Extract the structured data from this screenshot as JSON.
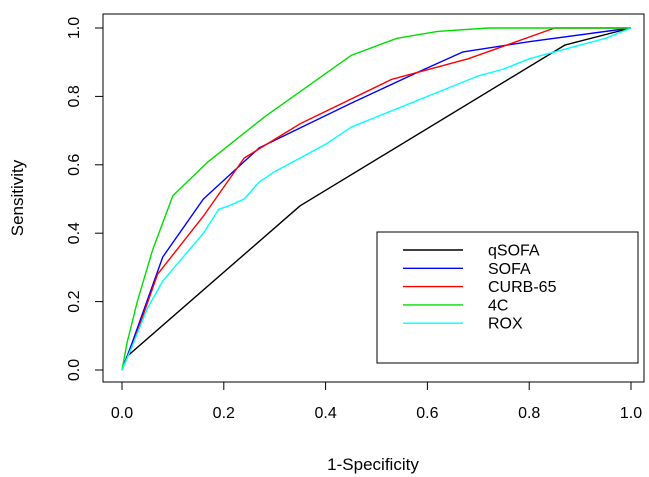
{
  "chart_data": {
    "type": "line",
    "title": "",
    "xlabel": "1-Specificity",
    "ylabel": "Sensitivity",
    "xlim": [
      0,
      1
    ],
    "ylim": [
      0,
      1
    ],
    "xticks": [
      "0.0",
      "0.2",
      "0.4",
      "0.6",
      "0.8",
      "1.0"
    ],
    "yticks": [
      "0.0",
      "0.2",
      "0.4",
      "0.6",
      "0.8",
      "1.0"
    ],
    "grid": false,
    "legend_position": "bottom-right",
    "series": [
      {
        "name": "qSOFA",
        "color": "#000000",
        "x": [
          0,
          0.01,
          0.35,
          0.87,
          1.0
        ],
        "y": [
          0,
          0.04,
          0.48,
          0.95,
          1.0
        ]
      },
      {
        "name": "SOFA",
        "color": "#0000ff",
        "x": [
          0,
          0.02,
          0.08,
          0.16,
          0.27,
          0.45,
          0.58,
          0.67,
          0.8,
          1.0
        ],
        "y": [
          0,
          0.08,
          0.33,
          0.5,
          0.65,
          0.78,
          0.87,
          0.93,
          0.96,
          1.0
        ]
      },
      {
        "name": "CURB-65",
        "color": "#ff0000",
        "x": [
          0,
          0.02,
          0.07,
          0.16,
          0.24,
          0.35,
          0.53,
          0.68,
          0.85,
          1.0
        ],
        "y": [
          0,
          0.07,
          0.28,
          0.45,
          0.62,
          0.72,
          0.85,
          0.91,
          1.0,
          1.0
        ]
      },
      {
        "name": "4C",
        "color": "#00dd00",
        "x": [
          0,
          0.01,
          0.03,
          0.06,
          0.1,
          0.17,
          0.28,
          0.45,
          0.54,
          0.62,
          0.72,
          0.85,
          1.0
        ],
        "y": [
          0,
          0.08,
          0.2,
          0.35,
          0.51,
          0.61,
          0.74,
          0.92,
          0.97,
          0.99,
          1.0,
          1.0,
          1.0
        ]
      },
      {
        "name": "ROX",
        "color": "#00ffff",
        "x": [
          0,
          0.02,
          0.05,
          0.08,
          0.12,
          0.16,
          0.19,
          0.21,
          0.24,
          0.27,
          0.3,
          0.35,
          0.4,
          0.45,
          0.5,
          0.55,
          0.6,
          0.65,
          0.7,
          0.75,
          0.8,
          0.85,
          0.9,
          0.95,
          1.0
        ],
        "y": [
          0,
          0.07,
          0.18,
          0.26,
          0.33,
          0.4,
          0.47,
          0.48,
          0.5,
          0.55,
          0.58,
          0.62,
          0.66,
          0.71,
          0.74,
          0.77,
          0.8,
          0.83,
          0.86,
          0.88,
          0.91,
          0.93,
          0.95,
          0.97,
          1.0
        ]
      }
    ]
  }
}
